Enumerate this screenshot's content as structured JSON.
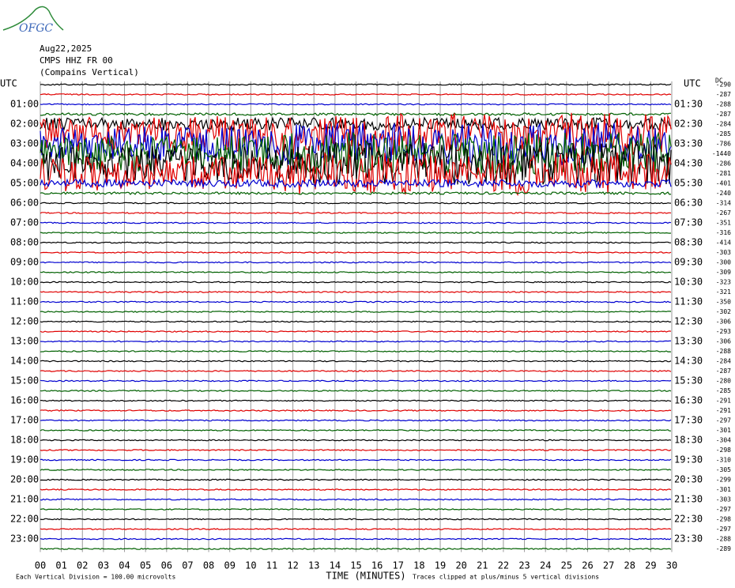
{
  "chart_data": {
    "type": "helicorder",
    "logo": "OFGC",
    "date": "Aug22,2025",
    "station": "CMPS HHZ FR 00",
    "location": "(Compains Vertical)",
    "left_title": "UTC",
    "right_title": "UTC",
    "dc_title": "DC",
    "left_labels": [
      "01:00",
      "02:00",
      "03:00",
      "04:00",
      "05:00",
      "06:00",
      "07:00",
      "08:00",
      "09:00",
      "10:00",
      "11:00",
      "12:00",
      "13:00",
      "14:00",
      "15:00",
      "16:00",
      "17:00",
      "18:00",
      "19:00",
      "20:00",
      "21:00",
      "22:00",
      "23:00"
    ],
    "right_labels": [
      "01:30",
      "02:30",
      "03:30",
      "04:30",
      "05:30",
      "06:30",
      "07:30",
      "08:30",
      "09:30",
      "10:30",
      "11:30",
      "12:30",
      "13:30",
      "14:30",
      "15:30",
      "16:30",
      "17:30",
      "18:30",
      "19:30",
      "20:30",
      "21:30",
      "22:30",
      "23:30"
    ],
    "dc_offsets": [
      -290,
      -287,
      -288,
      -287,
      -284,
      -285,
      -786,
      -1440,
      -286,
      -281,
      -401,
      -240,
      -314,
      -267,
      -351,
      -316,
      -414,
      -303,
      -300,
      -309,
      -323,
      -321,
      -350,
      -302,
      -306,
      -293,
      -306,
      -288,
      -284,
      -287,
      -280,
      -285,
      -291,
      -291,
      -297,
      -301,
      -304,
      -298,
      -310,
      -305,
      -299,
      -301,
      -303,
      -297,
      -298,
      -297,
      -288,
      -289
    ],
    "trace_colors": [
      "#000000",
      "#e00000",
      "#0000d0",
      "#006000"
    ],
    "xlim": [
      0,
      30
    ],
    "xticks": [
      {
        "value": 0,
        "label": "00"
      },
      {
        "value": 1,
        "label": "01"
      },
      {
        "value": 2,
        "label": "02"
      },
      {
        "value": 3,
        "label": "03"
      },
      {
        "value": 4,
        "label": "04"
      },
      {
        "value": 5,
        "label": "05"
      },
      {
        "value": 6,
        "label": "06"
      },
      {
        "value": 7,
        "label": "07"
      },
      {
        "value": 8,
        "label": "08"
      },
      {
        "value": 9,
        "label": "09"
      },
      10,
      11,
      12,
      13,
      14,
      15,
      16,
      17,
      18,
      19,
      20,
      21,
      22,
      23,
      24,
      25,
      26,
      27,
      28,
      29,
      30
    ],
    "xlabel": "TIME (MINUTES)",
    "scale_note": "Each Vertical Division =  100.00 microvolts",
    "clip_note": "Traces clipped at plus/minus 5 vertical divisions"
  }
}
